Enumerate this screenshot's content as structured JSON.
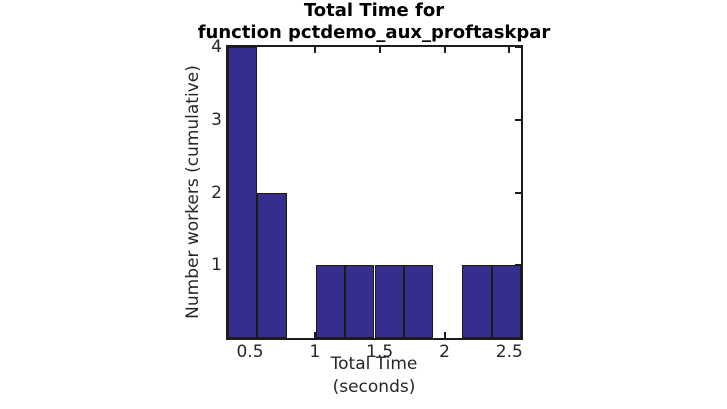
{
  "figure": {
    "title_line1": "Total Time for",
    "title_line2": "function pctdemo_aux_proftaskpar",
    "xlabel_line1": "Total Time",
    "xlabel_line2": "(seconds)",
    "ylabel": "Number workers (cumulative)"
  },
  "chart_data": {
    "type": "bar",
    "subtype": "histogram",
    "title": "Total Time for function pctdemo_aux_proftaskpar",
    "xlabel": "Total Time (seconds)",
    "ylabel": "Number workers (cumulative)",
    "values": [
      4,
      2,
      0,
      1,
      1,
      1,
      1,
      0,
      1,
      1
    ],
    "bin_start": 0.33,
    "bin_width": 0.226,
    "bin_centers": [
      0.44,
      0.67,
      0.9,
      1.12,
      1.35,
      1.57,
      1.8,
      2.03,
      2.25,
      2.48
    ],
    "xlim": [
      0.33,
      2.59
    ],
    "ylim": [
      0,
      4
    ],
    "xticks": [
      0.5,
      1,
      1.5,
      2,
      2.5
    ],
    "xtick_labels": [
      "0.5",
      "1",
      "1.5",
      "2",
      "2.5"
    ],
    "yticks": [
      1,
      2,
      3,
      4
    ],
    "ytick_labels": [
      "1",
      "2",
      "3",
      "4"
    ],
    "grid": false,
    "legend": null,
    "box": true,
    "tick_direction": "in",
    "bar_color": "#362e8c",
    "bar_edge_color": "#1a1a1a",
    "axis_color": "#1c1c1c",
    "text_color": "#262626",
    "background": "#ffffff"
  }
}
